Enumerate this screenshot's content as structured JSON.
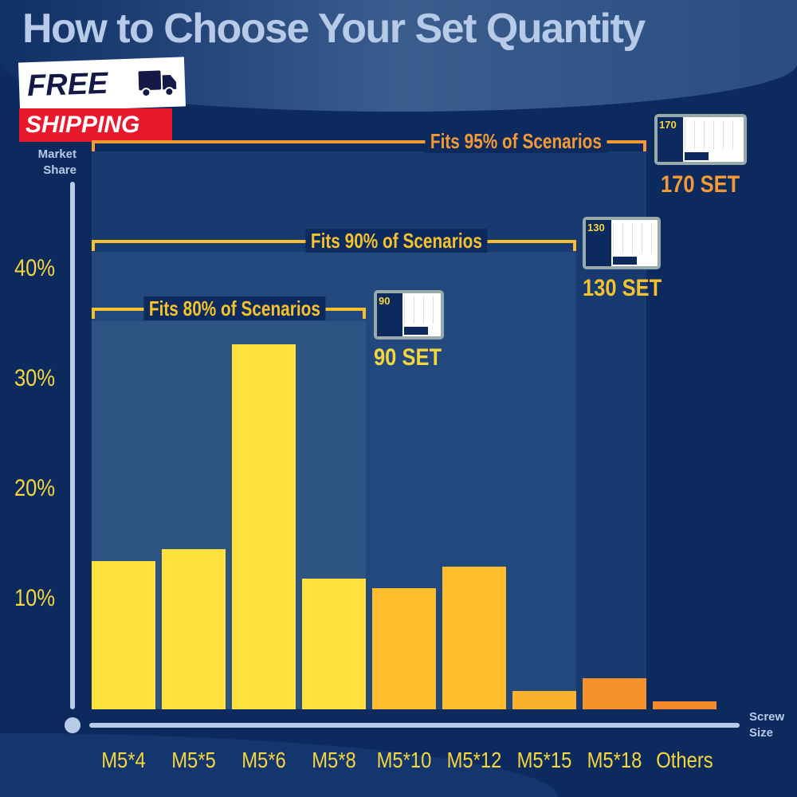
{
  "title": "How to Choose Your Set Quantity",
  "badge": {
    "line1": "FREE",
    "line2": "SHIPPING",
    "icon": "truck-icon"
  },
  "brackets": [
    {
      "label": "Fits 80% of Scenarios",
      "color": "#f5c12d",
      "set": "90 SET",
      "set_color": "#f5d63d",
      "box_number": "90"
    },
    {
      "label": "Fits 90% of Scenarios",
      "color": "#f5c12d",
      "set": "130 SET",
      "set_color": "#f5c12d",
      "box_number": "130"
    },
    {
      "label": "Fits 95% of Scenarios",
      "color": "#f39a34",
      "set": "170 SET",
      "set_color": "#f39a34",
      "box_number": "170"
    }
  ],
  "chart_data": {
    "type": "bar",
    "title": "How to Choose Your Set Quantity",
    "xlabel": "Screw Size",
    "ylabel": "Market Share",
    "categories": [
      "M5*4",
      "M5*5",
      "M5*6",
      "M5*8",
      "M5*10",
      "M5*12",
      "M5*15",
      "M5*18",
      "Others"
    ],
    "values": [
      13.5,
      14.6,
      33.2,
      11.9,
      11.0,
      13.0,
      1.7,
      2.8,
      0.7
    ],
    "colors": [
      "#fee13c",
      "#fee13c",
      "#fee13c",
      "#fee13c",
      "#fdbd2c",
      "#fdbd2c",
      "#fbb12e",
      "#f7922a",
      "#f3892a"
    ],
    "yticks": [
      "10%",
      "20%",
      "30%",
      "40%"
    ],
    "ytick_values": [
      10,
      20,
      30,
      40
    ],
    "ylim": [
      0,
      48
    ],
    "grid": false
  }
}
